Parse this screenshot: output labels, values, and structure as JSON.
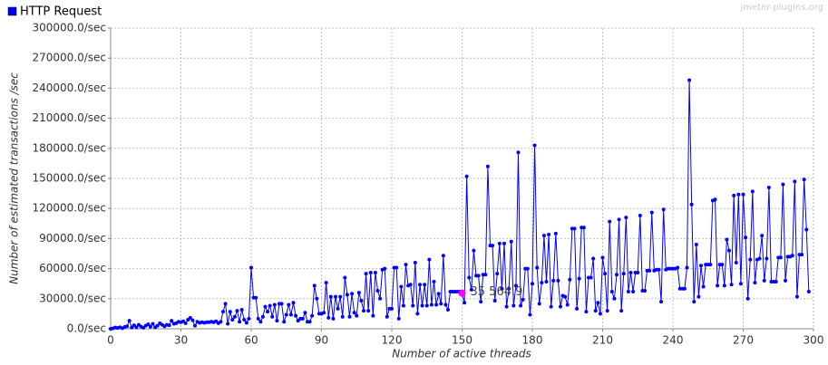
{
  "chart_data": {
    "type": "line",
    "legend": "HTTP Request",
    "watermark": "jmeter-plugins.org",
    "x_label": "Number of active threads",
    "y_label": "Number of estimated transactions /sec",
    "color": "#0000ff",
    "grid": true,
    "legend_position": "top-left",
    "xlim": [
      0,
      300
    ],
    "xticks": [
      0,
      30,
      60,
      90,
      120,
      150,
      180,
      210,
      240,
      270,
      300
    ],
    "ylim": [
      0,
      300000
    ],
    "yticks": [
      {
        "value": 0,
        "label": "0.0/sec"
      },
      {
        "value": 30000,
        "label": "30000.0/sec"
      },
      {
        "value": 60000,
        "label": "60000.0/sec"
      },
      {
        "value": 90000,
        "label": "90000.0/sec"
      },
      {
        "value": 120000,
        "label": "120000.0/sec"
      },
      {
        "value": 150000,
        "label": "150000.0/sec"
      },
      {
        "value": 180000,
        "label": "180000.0/sec"
      },
      {
        "value": 210000,
        "label": "210000.0/sec"
      },
      {
        "value": 240000,
        "label": "240000.0/sec"
      },
      {
        "value": 270000,
        "label": "270000.0/sec"
      },
      {
        "value": 300000,
        "label": "300000.0/sec"
      }
    ],
    "annotations": [
      {
        "x": 150,
        "y": 35564.9,
        "label": "35 564.9",
        "color": "#ff00ff"
      }
    ],
    "values": [
      0,
      500,
      1200,
      800,
      1500,
      600,
      1800,
      2500,
      8000,
      1200,
      3500,
      1500,
      4000,
      2200,
      1000,
      3000,
      4500,
      2000,
      5000,
      1500,
      3000,
      5500,
      4000,
      2500,
      4000,
      3500,
      8000,
      5000,
      5500,
      7000,
      6500,
      7500,
      5500,
      9000,
      11000,
      8500,
      3000,
      7000,
      6000,
      6500,
      6000,
      6500,
      6500,
      7000,
      6500,
      7500,
      5500,
      7000,
      17000,
      25000,
      5000,
      17000,
      9000,
      12000,
      18000,
      7000,
      19000,
      9000,
      6000,
      10000,
      61000,
      31000,
      31000,
      10000,
      7000,
      12000,
      22000,
      17000,
      23000,
      12000,
      24000,
      8000,
      25000,
      25000,
      7000,
      14000,
      24000,
      14000,
      26000,
      13000,
      8000,
      10000,
      10000,
      16000,
      7000,
      7000,
      13000,
      43000,
      30000,
      15000,
      15000,
      16000,
      46000,
      11000,
      32000,
      10000,
      32000,
      20000,
      32000,
      12000,
      51000,
      34000,
      12000,
      35000,
      16000,
      13000,
      36000,
      28000,
      18000,
      55000,
      18000,
      56000,
      13000,
      56000,
      38000,
      30000,
      59000,
      60000,
      12000,
      20000,
      20000,
      61000,
      61000,
      10000,
      42000,
      23000,
      64000,
      43000,
      44000,
      23000,
      66000,
      15000,
      44000,
      23000,
      44000,
      23000,
      69000,
      24000,
      47000,
      24000,
      35000,
      25000,
      73000,
      24000,
      19000,
      37000,
      37000,
      37000,
      37000,
      37000,
      35564.9,
      26000,
      152000,
      51000,
      39000,
      78000,
      53000,
      53000,
      27000,
      54000,
      54000,
      162000,
      83000,
      83000,
      28000,
      55000,
      85000,
      40000,
      85000,
      22000,
      40000,
      87000,
      23000,
      43000,
      176000,
      23000,
      29000,
      60000,
      60000,
      14000,
      45000,
      183000,
      61000,
      25000,
      46000,
      93000,
      47000,
      94000,
      22000,
      48000,
      95000,
      48000,
      22000,
      33000,
      32000,
      24000,
      49000,
      100000,
      100000,
      20000,
      50000,
      101000,
      101000,
      17000,
      51000,
      51000,
      70000,
      18000,
      26000,
      15000,
      71000,
      55000,
      18000,
      107000,
      37000,
      30000,
      54000,
      109000,
      18000,
      55000,
      111000,
      37000,
      56000,
      37000,
      56000,
      56000,
      113000,
      38000,
      38000,
      58000,
      58000,
      116000,
      58000,
      59000,
      59000,
      27000,
      119000,
      59000,
      60000,
      60000,
      60000,
      60000,
      61000,
      40000,
      40000,
      40000,
      61000,
      248000,
      124000,
      27000,
      84000,
      32000,
      63000,
      42000,
      64000,
      64000,
      64000,
      128000,
      129000,
      43000,
      64000,
      64000,
      43000,
      89000,
      78000,
      44000,
      133000,
      66000,
      134000,
      45000,
      134000,
      91000,
      30000,
      69000,
      137000,
      46000,
      69000,
      70000,
      93000,
      48000,
      70000,
      141000,
      47000,
      47000,
      47000,
      71000,
      71000,
      144000,
      48000,
      72000,
      72000,
      73000,
      147000,
      32000,
      74000,
      74000,
      149000,
      99000,
      37000
    ]
  }
}
